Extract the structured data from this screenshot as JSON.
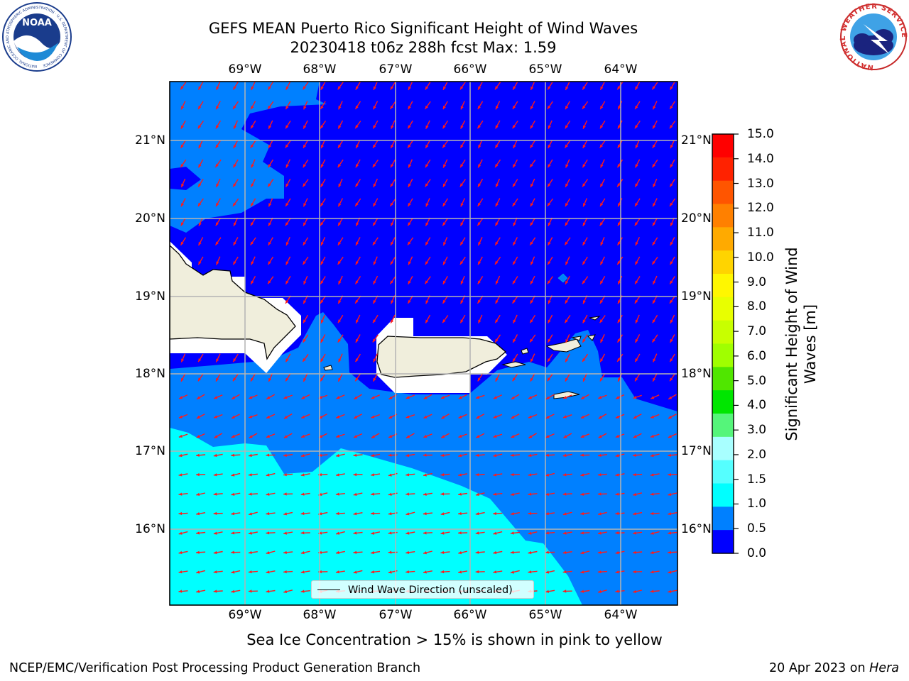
{
  "title_line1": "GEFS MEAN Puerto Rico Significant Height of Wind Waves",
  "title_line2": "20230418 t06z 288h fcst   Max: 1.59",
  "lon_labels": [
    "69°W",
    "68°W",
    "67°W",
    "66°W",
    "65°W",
    "64°W"
  ],
  "lat_labels": [
    "21°N",
    "20°N",
    "19°N",
    "18°N",
    "17°N",
    "16°N"
  ],
  "colorbar": {
    "label": "Significant Height of Wind Waves [m]",
    "ticks": [
      "15.0",
      "14.0",
      "13.0",
      "12.0",
      "11.0",
      "10.0",
      "9.0",
      "8.0",
      "7.0",
      "6.0",
      "5.0",
      "4.0",
      "3.0",
      "2.0",
      "1.5",
      "1.0",
      "0.5",
      "0.0"
    ],
    "colors": [
      "#ff0000",
      "#ff2200",
      "#ff5500",
      "#ff8000",
      "#ffaa00",
      "#ffd400",
      "#fff700",
      "#e8ff00",
      "#c8ff00",
      "#a0ff00",
      "#50e600",
      "#00e600",
      "#55f57a",
      "#a8ffff",
      "#55ffff",
      "#00ffff",
      "#0080ff",
      "#0000ff"
    ]
  },
  "legend_text": "Wind Wave Direction (unscaled)",
  "subnote": "Sea Ice Concentration > 15% is shown in pink to yellow",
  "credit": "NCEP/EMC/Verification Post Processing Product Generation Branch",
  "date_prefix": "20 Apr 2023 on",
  "date_host": "Hera",
  "logo_left": "NOAA",
  "logo_left_ring": "NATIONAL OCEANIC AND ATMOSPHERIC ADMINISTRATION · U.S. DEPARTMENT OF COMMERCE",
  "logo_right_ring": "NATIONAL WEATHER SERVICE"
}
